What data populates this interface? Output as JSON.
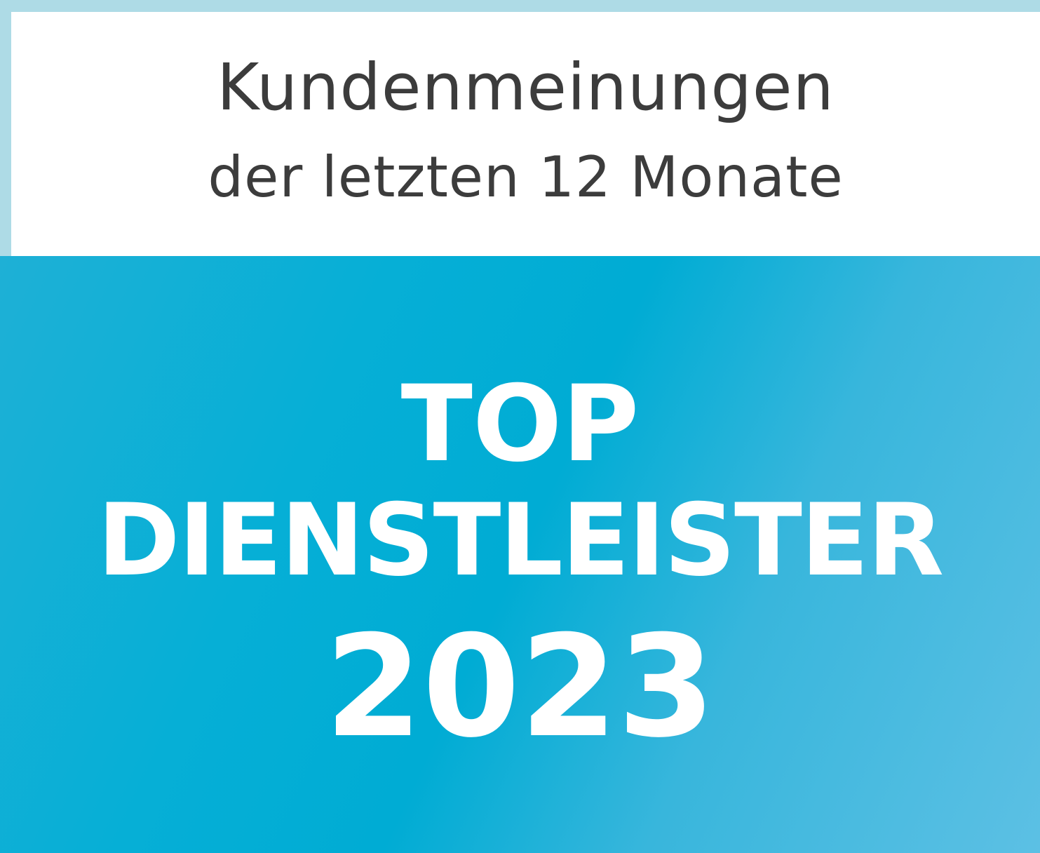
{
  "header": {
    "line1": "Kundenmeinungen",
    "line2": "der letzten 12 Monate"
  },
  "badge": {
    "line1": "TOP",
    "line2": "DIENSTLEISTER",
    "year": "2023"
  },
  "colors": {
    "border": "#aedbe6",
    "accent": "#00acd4",
    "text_dark": "#3c3c3c"
  }
}
